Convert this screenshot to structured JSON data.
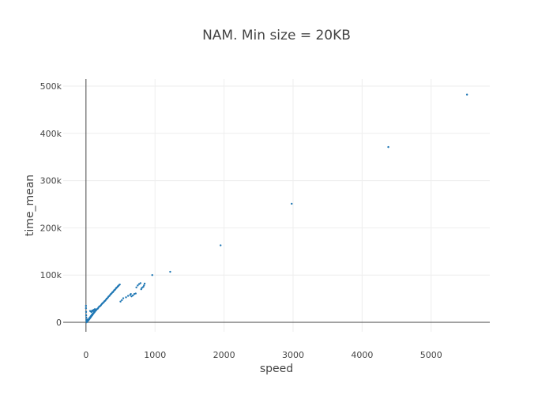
{
  "chart_data": {
    "type": "scatter",
    "title": "NAM. Min size = 20KB",
    "xlabel": "speed",
    "ylabel": "time_mean",
    "xlim": [
      -330,
      5850
    ],
    "ylim": [
      -20000,
      515000
    ],
    "x_ticks": [
      0,
      1000,
      2000,
      3000,
      4000,
      5000
    ],
    "x_tick_labels": [
      "0",
      "1000",
      "2000",
      "3000",
      "4000",
      "5000"
    ],
    "y_ticks": [
      0,
      100000,
      200000,
      300000,
      400000,
      500000
    ],
    "y_tick_labels": [
      "0",
      "100k",
      "200k",
      "300k",
      "400k",
      "500k"
    ],
    "grid": true,
    "marker_color": "#1f77b4",
    "series": [
      {
        "points": [
          [
            0,
            35000
          ],
          [
            0,
            30000
          ],
          [
            2,
            22000
          ],
          [
            3,
            15000
          ],
          [
            5,
            10000
          ],
          [
            5,
            5000
          ],
          [
            8,
            2000
          ],
          [
            10,
            0
          ],
          [
            12,
            3000
          ],
          [
            15,
            1000
          ],
          [
            18,
            6000
          ],
          [
            20,
            2500
          ],
          [
            25,
            4000
          ],
          [
            30,
            3500
          ],
          [
            35,
            6000
          ],
          [
            40,
            5000
          ],
          [
            45,
            8000
          ],
          [
            50,
            7000
          ],
          [
            55,
            10000
          ],
          [
            60,
            9000
          ],
          [
            65,
            12000
          ],
          [
            70,
            11000
          ],
          [
            75,
            14000
          ],
          [
            80,
            13000
          ],
          [
            85,
            16000
          ],
          [
            90,
            15000
          ],
          [
            95,
            18000
          ],
          [
            100,
            17000
          ],
          [
            105,
            19000
          ],
          [
            110,
            19000
          ],
          [
            115,
            21000
          ],
          [
            120,
            21000
          ],
          [
            125,
            22000
          ],
          [
            130,
            23000
          ],
          [
            135,
            24000
          ],
          [
            140,
            25000
          ],
          [
            150,
            26000
          ],
          [
            160,
            28000
          ],
          [
            170,
            29000
          ],
          [
            180,
            31000
          ],
          [
            190,
            33000
          ],
          [
            200,
            34000
          ],
          [
            210,
            35000
          ],
          [
            220,
            37000
          ],
          [
            230,
            39000
          ],
          [
            240,
            40000
          ],
          [
            250,
            42000
          ],
          [
            260,
            43000
          ],
          [
            270,
            45000
          ],
          [
            280,
            46000
          ],
          [
            290,
            48000
          ],
          [
            300,
            50000
          ],
          [
            310,
            51000
          ],
          [
            320,
            53000
          ],
          [
            330,
            55000
          ],
          [
            340,
            56000
          ],
          [
            350,
            58000
          ],
          [
            360,
            60000
          ],
          [
            370,
            61000
          ],
          [
            380,
            63000
          ],
          [
            390,
            64000
          ],
          [
            400,
            66000
          ],
          [
            410,
            68000
          ],
          [
            420,
            69000
          ],
          [
            430,
            71000
          ],
          [
            440,
            73000
          ],
          [
            450,
            74000
          ],
          [
            460,
            76000
          ],
          [
            470,
            77000
          ],
          [
            480,
            79000
          ],
          [
            490,
            80000
          ],
          [
            500,
            44000
          ],
          [
            520,
            47000
          ],
          [
            540,
            51000
          ],
          [
            580,
            53000
          ],
          [
            610,
            56000
          ],
          [
            640,
            58000
          ],
          [
            650,
            60000
          ],
          [
            660,
            55000
          ],
          [
            680,
            57000
          ],
          [
            700,
            60000
          ],
          [
            720,
            61000
          ],
          [
            730,
            74000
          ],
          [
            750,
            78000
          ],
          [
            770,
            81000
          ],
          [
            790,
            83000
          ],
          [
            800,
            70000
          ],
          [
            810,
            73000
          ],
          [
            830,
            75000
          ],
          [
            840,
            78000
          ],
          [
            850,
            82000
          ],
          [
            960,
            100000
          ],
          [
            1220,
            107000
          ],
          [
            1950,
            163000
          ],
          [
            2980,
            251000
          ],
          [
            4380,
            371000
          ],
          [
            5520,
            482000
          ],
          [
            60,
            24000
          ],
          [
            70,
            23000
          ],
          [
            80,
            22000
          ],
          [
            90,
            25000
          ],
          [
            100,
            24000
          ],
          [
            110,
            26000
          ],
          [
            120,
            27000
          ],
          [
            130,
            28000
          ]
        ]
      }
    ]
  }
}
